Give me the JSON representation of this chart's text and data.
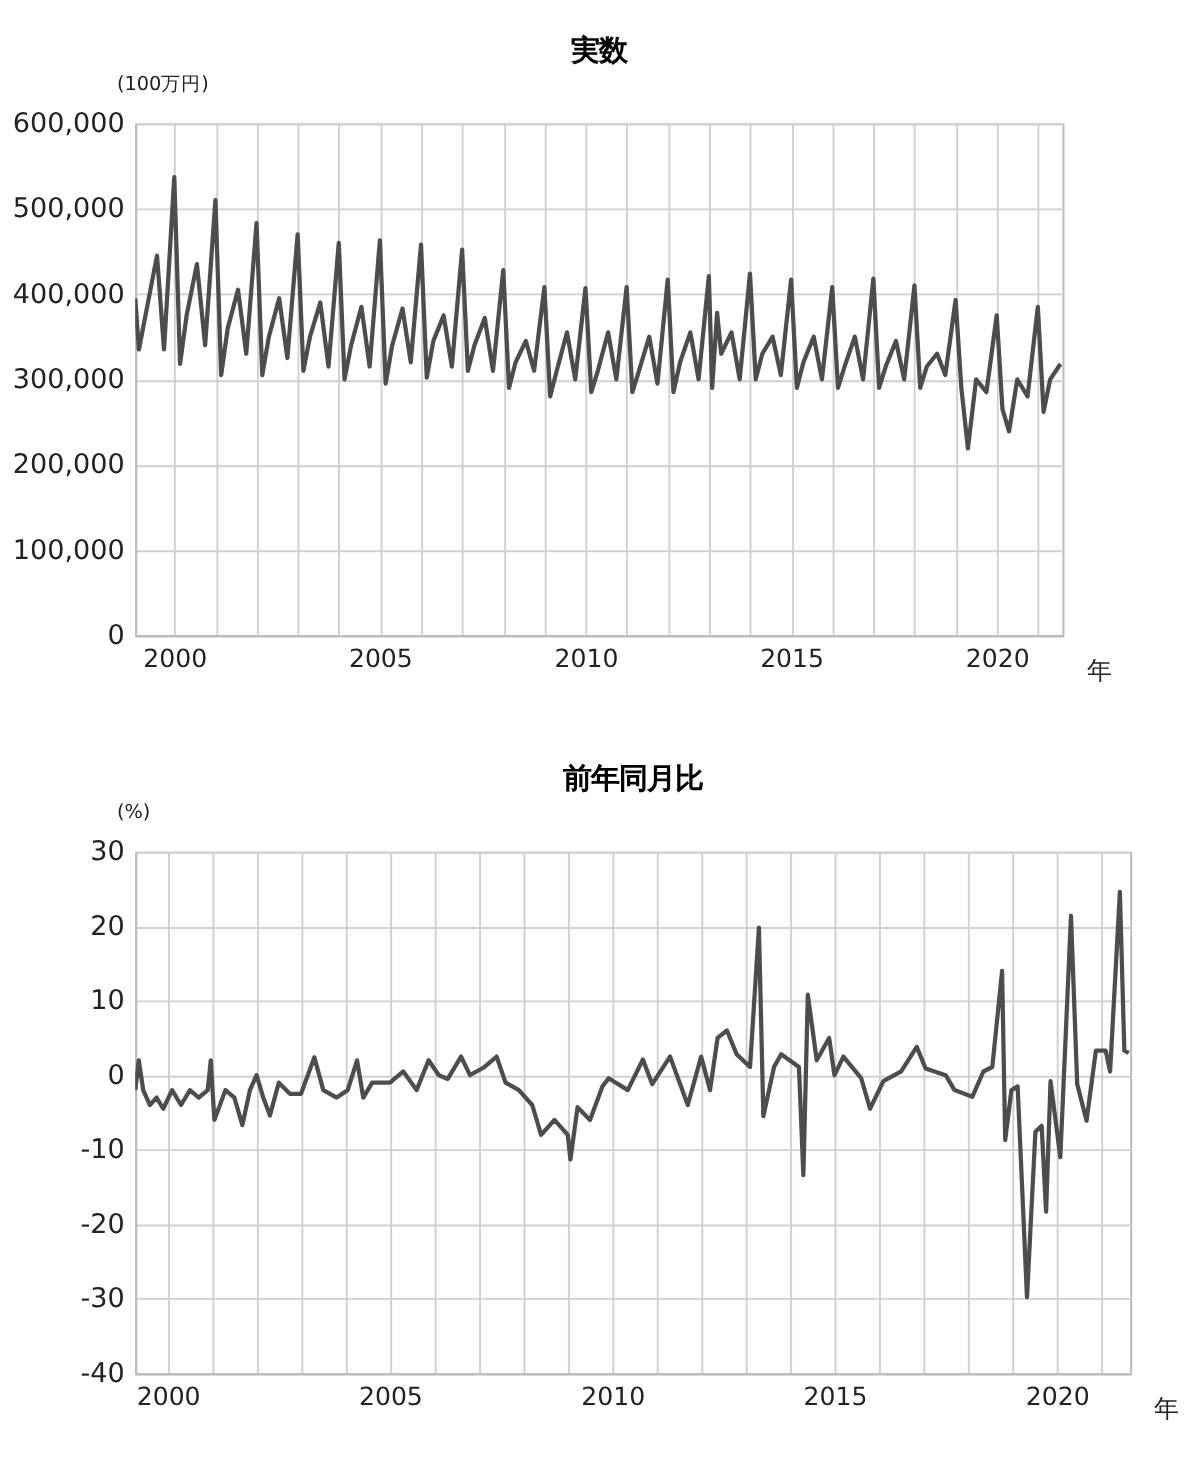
{
  "chart_data": [
    {
      "type": "line",
      "title": "実数",
      "ylabel": "(100万円)",
      "xlabel": "年",
      "grid": true,
      "xlim": [
        1999.05,
        2021.6
      ],
      "ylim": [
        0,
        600000
      ],
      "xticks": [
        2000,
        {
          "value": 2001,
          "label": null
        },
        {
          "value": 2002,
          "label": null
        },
        {
          "value": 2003,
          "label": null
        },
        {
          "value": 2004,
          "label": null
        },
        2005,
        {
          "value": 2006,
          "label": null
        },
        {
          "value": 2007,
          "label": null
        },
        {
          "value": 2008,
          "label": null
        },
        {
          "value": 2009,
          "label": null
        },
        2010,
        {
          "value": 2011,
          "label": null
        },
        {
          "value": 2012,
          "label": null
        },
        {
          "value": 2013,
          "label": null
        },
        {
          "value": 2014,
          "label": null
        },
        2015,
        {
          "value": 2016,
          "label": null
        },
        {
          "value": 2017,
          "label": null
        },
        {
          "value": 2018,
          "label": null
        },
        {
          "value": 2019,
          "label": null
        },
        2020,
        {
          "value": 2021,
          "label": null
        }
      ],
      "yticks": [
        0,
        {
          "value": 100000,
          "label": "100,000"
        },
        {
          "value": 200000,
          "label": "200,000"
        },
        {
          "value": 300000,
          "label": "300,000"
        },
        {
          "value": 400000,
          "label": "400,000"
        },
        {
          "value": 500000,
          "label": "500,000"
        },
        {
          "value": 600000,
          "label": "600,000"
        }
      ],
      "series": [
        {
          "color": "#4d4d4d",
          "x": [
            1999.05,
            1999.14,
            1999.3,
            1999.58,
            1999.75,
            2000.0,
            2000.14,
            2000.3,
            2000.55,
            2000.75,
            2001.0,
            2001.14,
            2001.3,
            2001.55,
            2001.75,
            2002.0,
            2002.14,
            2002.3,
            2002.55,
            2002.75,
            2003.0,
            2003.14,
            2003.3,
            2003.55,
            2003.75,
            2004.0,
            2004.14,
            2004.3,
            2004.55,
            2004.75,
            2005.0,
            2005.14,
            2005.3,
            2005.55,
            2005.75,
            2006.0,
            2006.14,
            2006.3,
            2006.55,
            2006.75,
            2007.0,
            2007.14,
            2007.3,
            2007.55,
            2007.75,
            2008.0,
            2008.14,
            2008.3,
            2008.55,
            2008.75,
            2009.0,
            2009.14,
            2009.3,
            2009.55,
            2009.75,
            2010.0,
            2010.14,
            2010.3,
            2010.55,
            2010.75,
            2011.0,
            2011.14,
            2011.3,
            2011.55,
            2011.75,
            2012.0,
            2012.14,
            2012.3,
            2012.55,
            2012.75,
            2013.0,
            2013.08,
            2013.2,
            2013.3,
            2013.55,
            2013.75,
            2014.0,
            2014.14,
            2014.3,
            2014.55,
            2014.75,
            2015.0,
            2015.14,
            2015.3,
            2015.55,
            2015.75,
            2016.0,
            2016.14,
            2016.3,
            2016.55,
            2016.75,
            2017.0,
            2017.14,
            2017.3,
            2017.55,
            2017.75,
            2018.0,
            2018.14,
            2018.3,
            2018.55,
            2018.75,
            2019.0,
            2019.14,
            2019.3,
            2019.5,
            2019.75,
            2020.0,
            2020.14,
            2020.3,
            2020.5,
            2020.75,
            2021.0,
            2021.14,
            2021.3,
            2021.55
          ],
          "values": [
            395000,
            335000,
            375000,
            445000,
            335000,
            537000,
            318000,
            375000,
            435000,
            340000,
            510000,
            305000,
            360000,
            405000,
            330000,
            483000,
            305000,
            350000,
            395000,
            325000,
            470000,
            310000,
            350000,
            390000,
            315000,
            460000,
            300000,
            340000,
            385000,
            315000,
            463000,
            295000,
            340000,
            383000,
            320000,
            458000,
            302000,
            345000,
            375000,
            315000,
            452000,
            310000,
            340000,
            372000,
            310000,
            428000,
            290000,
            320000,
            345000,
            310000,
            408000,
            280000,
            310000,
            355000,
            300000,
            407000,
            285000,
            310000,
            355000,
            300000,
            408000,
            285000,
            310000,
            350000,
            295000,
            417000,
            285000,
            320000,
            355000,
            300000,
            421000,
            290000,
            378000,
            330000,
            355000,
            300000,
            424000,
            300000,
            330000,
            350000,
            305000,
            417000,
            290000,
            320000,
            350000,
            300000,
            408000,
            290000,
            315000,
            350000,
            300000,
            418000,
            290000,
            315000,
            345000,
            300000,
            410000,
            290000,
            315000,
            330000,
            305000,
            393000,
            290000,
            219000,
            300000,
            285000,
            375000,
            265000,
            239000,
            300000,
            280000,
            385000,
            262000,
            300000,
            318000
          ]
        }
      ]
    },
    {
      "type": "line",
      "title": "前年同月比",
      "ylabel": "(%)",
      "xlabel": "年",
      "grid": true,
      "xlim": [
        1999.27,
        2021.65
      ],
      "ylim": [
        -40,
        30
      ],
      "xticks": [
        2000,
        {
          "value": 2001,
          "label": null
        },
        {
          "value": 2002,
          "label": null
        },
        {
          "value": 2003,
          "label": null
        },
        {
          "value": 2004,
          "label": null
        },
        2005,
        {
          "value": 2006,
          "label": null
        },
        {
          "value": 2007,
          "label": null
        },
        {
          "value": 2008,
          "label": null
        },
        {
          "value": 2009,
          "label": null
        },
        2010,
        {
          "value": 2011,
          "label": null
        },
        {
          "value": 2012,
          "label": null
        },
        {
          "value": 2013,
          "label": null
        },
        {
          "value": 2014,
          "label": null
        },
        2015,
        {
          "value": 2016,
          "label": null
        },
        {
          "value": 2017,
          "label": null
        },
        {
          "value": 2018,
          "label": null
        },
        {
          "value": 2019,
          "label": null
        },
        2020,
        {
          "value": 2021,
          "label": null
        }
      ],
      "yticks": [
        -40,
        -30,
        -20,
        -10,
        0,
        10,
        20,
        30
      ],
      "series": [
        {
          "color": "#4d4d4d",
          "x": [
            1999.27,
            1999.35,
            1999.45,
            1999.6,
            1999.75,
            1999.9,
            2000.1,
            2000.3,
            2000.5,
            2000.7,
            2000.9,
            2000.97,
            2001.05,
            2001.3,
            2001.5,
            2001.68,
            2001.85,
            2002.0,
            2002.15,
            2002.3,
            2002.5,
            2002.75,
            2003.0,
            2003.3,
            2003.5,
            2003.8,
            2004.05,
            2004.26,
            2004.4,
            2004.6,
            2005.0,
            2005.3,
            2005.6,
            2005.87,
            2006.1,
            2006.3,
            2006.6,
            2006.8,
            2007.1,
            2007.4,
            2007.6,
            2007.9,
            2008.2,
            2008.4,
            2008.7,
            2009.0,
            2009.06,
            2009.22,
            2009.5,
            2009.78,
            2009.92,
            2010.35,
            2010.69,
            2010.9,
            2011.3,
            2011.7,
            2012.0,
            2012.2,
            2012.37,
            2012.58,
            2012.8,
            2013.1,
            2013.3,
            2013.4,
            2013.64,
            2013.8,
            2014.2,
            2014.3,
            2014.4,
            2014.6,
            2014.88,
            2015.0,
            2015.2,
            2015.6,
            2015.8,
            2016.1,
            2016.5,
            2016.85,
            2017.05,
            2017.5,
            2017.7,
            2018.1,
            2018.35,
            2018.55,
            2018.77,
            2018.84,
            2018.98,
            2019.12,
            2019.33,
            2019.52,
            2019.66,
            2019.76,
            2019.86,
            2020.08,
            2020.32,
            2020.46,
            2020.67,
            2020.88,
            2021.1,
            2021.2,
            2021.42,
            2021.52,
            2021.62
          ],
          "values": [
            -2,
            2,
            -2,
            -4,
            -3,
            -4.5,
            -2,
            -4,
            -2,
            -3,
            -2,
            2,
            -6,
            -2,
            -3,
            -6.7,
            -2,
            0,
            -3,
            -5.4,
            -1,
            -2.5,
            -2.5,
            2.4,
            -2,
            -3,
            -2,
            2,
            -3,
            -1,
            -1,
            0.5,
            -2,
            2,
            0,
            -0.5,
            2.5,
            0,
            1,
            2.5,
            -1,
            -2,
            -4,
            -8,
            -6,
            -8,
            -11.3,
            -4.3,
            -6,
            -1.5,
            -0.4,
            -2,
            2.1,
            -1.2,
            2.5,
            -4,
            2.5,
            -2,
            5,
            6,
            2.8,
            1.1,
            19.8,
            -5.5,
            1.1,
            2.8,
            1.1,
            -13.4,
            10.8,
            2,
            5,
            0,
            2.5,
            -0.4,
            -4.5,
            -0.8,
            0.5,
            3.8,
            0.9,
            0,
            -2,
            -2.9,
            0.5,
            1.1,
            14,
            -8.7,
            -2,
            -1.5,
            -29.8,
            -7.6,
            -6.8,
            -18.3,
            -0.8,
            -11,
            21.4,
            -1.2,
            -6.1,
            3.3,
            3.3,
            0.5,
            24.6,
            3.3,
            3
          ]
        }
      ]
    }
  ]
}
